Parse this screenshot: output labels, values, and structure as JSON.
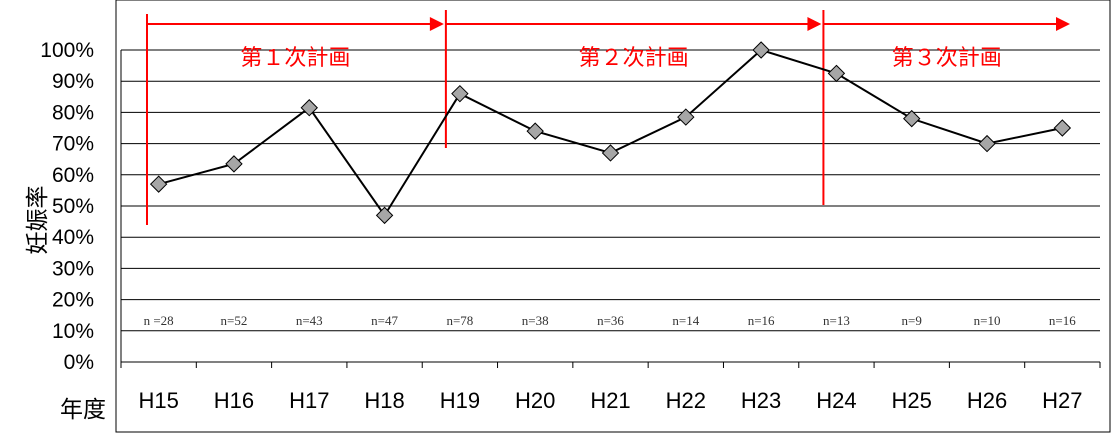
{
  "chart_data": {
    "type": "line",
    "categories": [
      "H15",
      "H16",
      "H17",
      "H18",
      "H19",
      "H20",
      "H21",
      "H22",
      "H23",
      "H24",
      "H25",
      "H26",
      "H27"
    ],
    "series": [
      {
        "values": [
          57,
          63.5,
          81.5,
          47,
          86,
          74,
          67,
          78.5,
          100,
          92.5,
          78,
          70,
          75
        ]
      }
    ],
    "n_labels": [
      "n =28",
      "n=52",
      "n=43",
      "n=47",
      "n=78",
      "n=38",
      "n=36",
      "n=14",
      "n=16",
      "n=13",
      "n=9",
      "n=10",
      "n=16"
    ],
    "y_ticks": [
      "0%",
      "10%",
      "20%",
      "30%",
      "40%",
      "50%",
      "60%",
      "70%",
      "80%",
      "90%",
      "100%"
    ],
    "ylim": [
      0,
      100
    ],
    "ylabel": "妊娠率",
    "xlabel": "年度",
    "grid": true,
    "marker": "diamond",
    "line_color": "#000000",
    "marker_color": "#a6a6a6",
    "annotation_color": "#ff0000",
    "plan_periods": [
      {
        "label": "第１次計画",
        "start_index": 0,
        "end_index": 4
      },
      {
        "label": "第２次計画",
        "start_index": 4,
        "end_index": 9
      },
      {
        "label": "第３次計画",
        "start_index": 9,
        "end_index": 12
      }
    ]
  }
}
